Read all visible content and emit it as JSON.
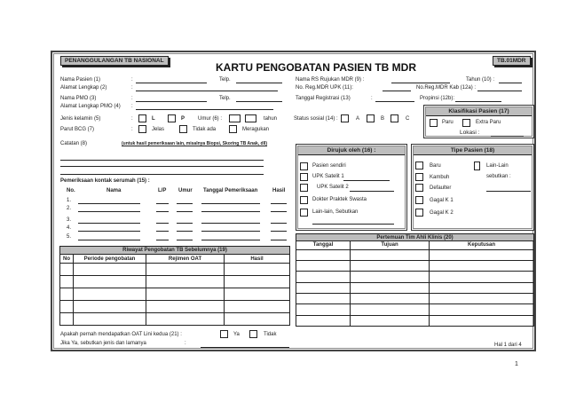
{
  "header": {
    "program": "PENANGGULANGAN TB NASIONAL",
    "title": "KARTU PENGOBATAN PASIEN TB MDR",
    "code": "TB.01MDR"
  },
  "left_fields": {
    "nama_pasien": "Nama Pasien (1)",
    "alamat": "Alamat Lengkap (2)",
    "nama_pmo": "Nama PMO (3)",
    "alamat_pmo": "Alamat Lengkap PMO (4)",
    "telp": "Telp.",
    "colon": ":",
    "jenis_kelamin": "Jenis kelamin (5)",
    "l": "L",
    "p": "P",
    "umur": "Umur (6) :",
    "tahun": "tahun",
    "parut": "Parut BCG (7)",
    "jelas": "Jelas",
    "tidak_ada": "Tidak ada",
    "meragukan": "Meragukan",
    "catatan": "Catatan (8)",
    "catatan_note": "(untuk hasil pemeriksaan lain, misalnya Biopsi, Skoring TB Anak, dll)"
  },
  "right_fields": {
    "nama_rs": "Nama RS Rujukan MDR (9) :",
    "tahun": "Tahun (10)  :",
    "no_reg_upk": "No. Reg.MDR UPK (11):",
    "no_reg_kab": "No.Reg.MDR Kab (12a) :",
    "tanggal_reg": "Tanggal Registrasi (13)",
    "propinsi": "Propinsi (12b):",
    "status_sosial": "Status sosial (14) :",
    "a": "A",
    "b": "B",
    "c": "C"
  },
  "klasifikasi": {
    "title": "Klasifikasi Pasien (17)",
    "paru": "Paru",
    "extra_paru": "Extra Paru",
    "lokasi": "Lokasi  :"
  },
  "dirujuk": {
    "title": "Dirujuk oleh (16) :",
    "items": [
      "Pasien sendiri",
      "UPK Satelit 1",
      "UPK Satelit 2",
      "Dokter Praktek Swasta",
      "Lain-lain, Sebutkan"
    ]
  },
  "tipe": {
    "title": "Tipe Pasien (18)",
    "items": [
      "Baru",
      "Kambuh",
      "Defaulter",
      "Gagal K 1",
      "Gagal K 2"
    ],
    "lain": "Lain-Lain",
    "sebutkan": "sebutkan :"
  },
  "kontak": {
    "label": "Pemeriksaan kontak serumah (15) :",
    "headers": [
      "No.",
      "Nama",
      "L/P",
      "Umur",
      "Tanggal Pemeriksaan",
      "Hasil"
    ],
    "rows": [
      "1.",
      "2.",
      "3.",
      "4.",
      "5."
    ]
  },
  "riwayat": {
    "title": "Riwayat Pengobatan TB Sebelumnya (19)",
    "headers": [
      "No",
      "Periode pengobatan",
      "Rejimen OAT",
      "Hasil"
    ]
  },
  "pertemuan": {
    "title": "Pertemuan Tim Ahli Klinis (20)",
    "headers": [
      "Tanggal",
      "Tujuan",
      "Keputusan"
    ]
  },
  "oat": {
    "question": "Apakah pernah mendapatkan OAT Lini kedua (21) :",
    "ya": "Ya",
    "tidak": "Tidak",
    "jika": "Jika Ya, sebutkan jenis dan lamanya",
    "colon": ":"
  },
  "footer": {
    "hal": "Hal 1 dari 4",
    "page": "1"
  }
}
